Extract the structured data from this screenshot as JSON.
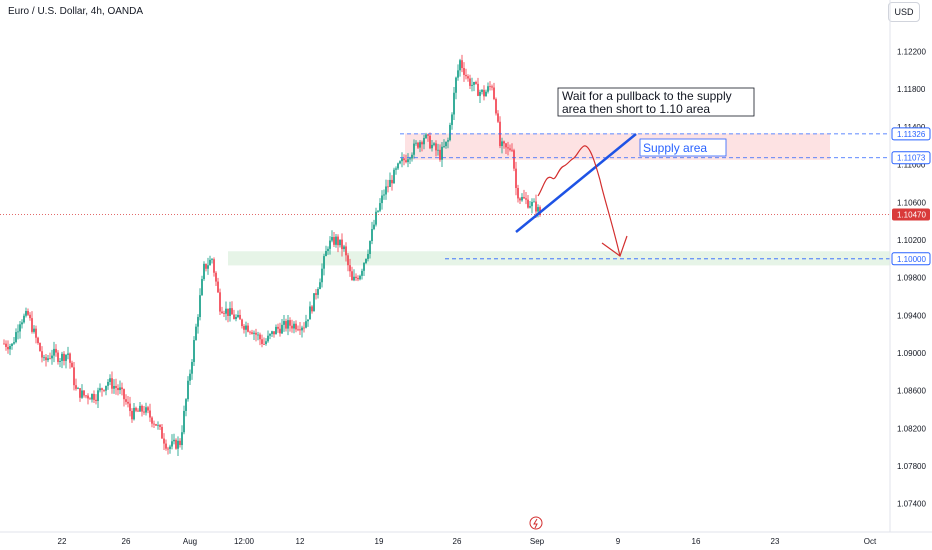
{
  "header": {
    "symbol": "Euro / U.S. Dollar, 4h, OANDA"
  },
  "currency_button": "USD",
  "time_axis_icon": "lightning-bolt-icon",
  "colors": {
    "up": "#089981",
    "down": "#f23645",
    "blue_line": "#2962ff",
    "drawn_line": "#1e53e5",
    "supply_fill": "#fde2e3",
    "demand_fill": "#e6f4e7",
    "arrow": "#d32f2f",
    "current_price": "#d93a3a",
    "level_tag": "#2962ff"
  },
  "chart_data": {
    "type": "candlestick",
    "timeframe": "4h",
    "y_ticks": [
      "1.12200",
      "1.11800",
      "1.11400",
      "1.11000",
      "1.10600",
      "1.10200",
      "1.09800",
      "1.09400",
      "1.09000",
      "1.08600",
      "1.08200",
      "1.07800",
      "1.07400"
    ],
    "y_range": [
      1.071,
      1.1245
    ],
    "x_ticks": [
      "22",
      "26",
      "Aug",
      "12:00",
      "12",
      "19",
      "26",
      "Sep",
      "9",
      "16",
      "23",
      "Oct"
    ],
    "current_price": {
      "label": "1.10470",
      "value": 1.1047
    },
    "levels": [
      {
        "label": "1.11326",
        "value": 1.11326
      },
      {
        "label": "1.11073",
        "value": 1.11073
      },
      {
        "label": "1.10000",
        "value": 1.1
      }
    ],
    "zones": [
      {
        "name": "supply",
        "from": 1.1105,
        "to": 1.1133
      },
      {
        "name": "demand",
        "from": 1.0993,
        "to": 1.1008
      }
    ],
    "annotations": {
      "note": "Wait for a pullback to the supply area then short to 1.10 area",
      "note_line1": "Wait for a pullback to the supply",
      "note_line2": "area then short to 1.10 area",
      "zone_label": "Supply area"
    },
    "anchors": [
      [
        0,
        1.091
      ],
      [
        4,
        1.0908
      ],
      [
        8,
        1.0935
      ],
      [
        12,
        1.094
      ],
      [
        16,
        1.0915
      ],
      [
        20,
        1.089
      ],
      [
        24,
        1.09
      ],
      [
        28,
        1.0895
      ],
      [
        32,
        1.09
      ],
      [
        36,
        1.086
      ],
      [
        40,
        1.0855
      ],
      [
        46,
        1.0855
      ],
      [
        52,
        1.087
      ],
      [
        58,
        1.086
      ],
      [
        64,
        1.0835
      ],
      [
        70,
        1.084
      ],
      [
        76,
        1.0825
      ],
      [
        82,
        1.08
      ],
      [
        88,
        1.0805
      ],
      [
        94,
        1.0895
      ],
      [
        100,
        1.099
      ],
      [
        104,
        1.1
      ],
      [
        108,
        1.095
      ],
      [
        114,
        1.094
      ],
      [
        120,
        1.093
      ],
      [
        124,
        1.0925
      ],
      [
        130,
        1.091
      ],
      [
        136,
        1.0925
      ],
      [
        142,
        1.093
      ],
      [
        150,
        1.093
      ],
      [
        154,
        1.095
      ],
      [
        158,
        1.098
      ],
      [
        162,
        1.1015
      ],
      [
        166,
        1.102
      ],
      [
        170,
        1.101
      ],
      [
        174,
        1.0975
      ],
      [
        178,
        1.0985
      ],
      [
        182,
        1.101
      ],
      [
        186,
        1.1045
      ],
      [
        190,
        1.107
      ],
      [
        194,
        1.1085
      ],
      [
        198,
        1.11
      ],
      [
        202,
        1.111
      ],
      [
        206,
        1.112
      ],
      [
        210,
        1.113
      ],
      [
        214,
        1.112
      ],
      [
        218,
        1.111
      ],
      [
        222,
        1.1125
      ],
      [
        226,
        1.119
      ],
      [
        228,
        1.121
      ],
      [
        232,
        1.119
      ],
      [
        236,
        1.118
      ],
      [
        240,
        1.1175
      ],
      [
        244,
        1.1185
      ],
      [
        246,
        1.116
      ],
      [
        248,
        1.112
      ],
      [
        252,
        1.1115
      ],
      [
        254,
        1.112
      ],
      [
        256,
        1.1075
      ],
      [
        258,
        1.1065
      ],
      [
        262,
        1.106
      ],
      [
        266,
        1.1055
      ],
      [
        268,
        1.1047
      ]
    ]
  }
}
